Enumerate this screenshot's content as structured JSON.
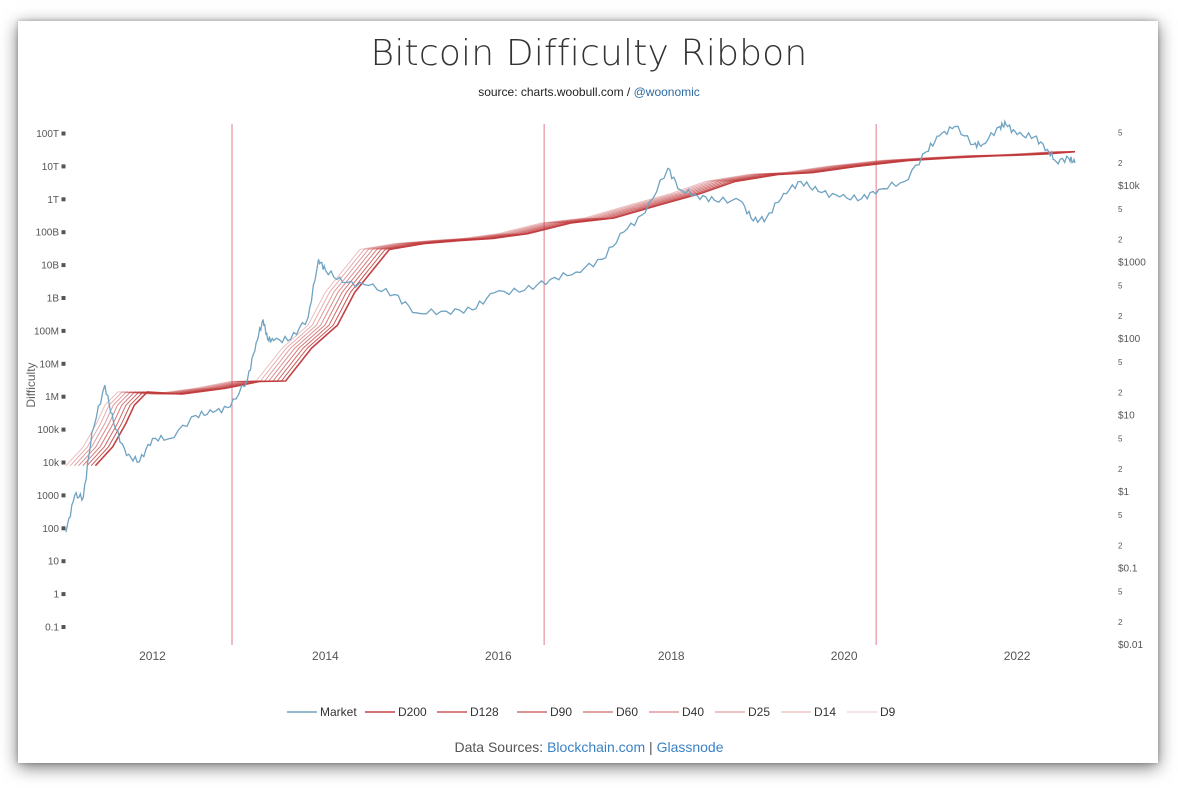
{
  "header": {
    "title": "Bitcoin Difficulty Ribbon",
    "source_prefix": "source: charts.woobull.com / ",
    "source_handle": "@woonomic"
  },
  "footer": {
    "prefix": "Data Sources: ",
    "source1": "Blockchain.com",
    "separator": " | ",
    "source2": "Glassnode"
  },
  "colors": {
    "market": "#6fa3c2",
    "ribbon": "#c0393b",
    "vline": "#e27b8a",
    "axis_text": "#555555"
  },
  "chart_data": {
    "type": "line",
    "title": "Bitcoin Difficulty Ribbon",
    "ylabel": "Difficulty",
    "y_scale": "log",
    "xlim": [
      2011.0,
      2022.67
    ],
    "x_ticks": [
      "2012",
      "2014",
      "2016",
      "2018",
      "2020",
      "2022"
    ],
    "y_left_ticks": [
      "100T",
      "10T",
      "1T",
      "100B",
      "10B",
      "1B",
      "100M",
      "10M",
      "1M",
      "100k",
      "10k",
      "1000",
      "100",
      "10",
      "1",
      "0.1"
    ],
    "y_left_values": [
      100000000000000.0,
      10000000000000.0,
      1000000000000.0,
      100000000000.0,
      10000000000.0,
      1000000000.0,
      100000000.0,
      10000000.0,
      1000000.0,
      100000.0,
      10000.0,
      1000.0,
      100.0,
      10,
      1,
      0.1
    ],
    "y_right_ticks": [
      "5",
      "2",
      "$10k",
      "5",
      "2",
      "$1000",
      "5",
      "2",
      "$100",
      "5",
      "2",
      "$10",
      "5",
      "2",
      "$1",
      "5",
      "2",
      "$0.1",
      "5",
      "2",
      "$0.01"
    ],
    "y_right_values": [
      50000,
      20000,
      10000,
      5000,
      2000,
      1000,
      500,
      200,
      100,
      50,
      20,
      10,
      5,
      2,
      1,
      0.5,
      0.2,
      0.1,
      0.05,
      0.02,
      0.01
    ],
    "vertical_lines": [
      2012.92,
      2016.53,
      2020.37
    ],
    "legend": [
      "Market",
      "D200",
      "D128",
      "D90",
      "D60",
      "D40",
      "D25",
      "D14",
      "D9"
    ],
    "market": {
      "name": "Market",
      "x": [
        2011.0,
        2011.1,
        2011.2,
        2011.3,
        2011.45,
        2011.55,
        2011.7,
        2011.85,
        2012.0,
        2012.2,
        2012.5,
        2012.7,
        2012.9,
        2013.1,
        2013.2,
        2013.28,
        2013.33,
        2013.4,
        2013.6,
        2013.8,
        2013.92,
        2014.0,
        2014.2,
        2014.5,
        2014.8,
        2015.05,
        2015.4,
        2015.7,
        2015.95,
        2016.3,
        2016.6,
        2016.9,
        2017.2,
        2017.45,
        2017.7,
        2017.96,
        2018.1,
        2018.3,
        2018.5,
        2018.8,
        2018.95,
        2019.1,
        2019.3,
        2019.5,
        2019.7,
        2019.95,
        2020.2,
        2020.4,
        2020.7,
        2020.95,
        2021.1,
        2021.28,
        2021.5,
        2021.6,
        2021.8,
        2021.87,
        2022.0,
        2022.2,
        2022.35,
        2022.45,
        2022.6,
        2022.67
      ],
      "y": [
        0.3,
        0.9,
        0.85,
        6,
        25,
        8,
        3,
        2.5,
        5,
        5,
        10,
        11,
        13,
        30,
        90,
        180,
        100,
        95,
        100,
        190,
        1100,
        800,
        550,
        500,
        380,
        220,
        230,
        240,
        400,
        430,
        600,
        750,
        1100,
        2500,
        4500,
        17000,
        9000,
        7500,
        6500,
        6400,
        3500,
        3800,
        8000,
        11500,
        8500,
        7200,
        6800,
        9000,
        11500,
        28000,
        45000,
        60000,
        35000,
        35000,
        60000,
        64000,
        47000,
        44000,
        30000,
        21000,
        23000,
        20000
      ]
    },
    "ribbon": {
      "series_names": [
        "D200",
        "D128",
        "D90",
        "D60",
        "D40",
        "D25",
        "D14",
        "D9"
      ],
      "x": [
        2011.0,
        2011.2,
        2011.35,
        2011.45,
        2011.6,
        2012.0,
        2012.5,
        2012.9,
        2013.2,
        2013.5,
        2013.8,
        2014.0,
        2014.4,
        2014.8,
        2015.2,
        2015.6,
        2016.0,
        2016.5,
        2017.0,
        2017.5,
        2018.0,
        2018.4,
        2018.9,
        2019.3,
        2019.8,
        2020.4,
        2020.9,
        2021.4,
        2021.7,
        2022.0,
        2022.4,
        2022.67
      ],
      "y": [
        8000,
        30000,
        150000,
        550000,
        1400000,
        1200000,
        1800000,
        2900000,
        3000000,
        30000000,
        150000000,
        1500000000,
        30000000000,
        45000000000,
        55000000000,
        65000000000,
        90000000000,
        190000000000,
        270000000000,
        650000000000,
        1500000000000,
        3500000000000,
        5700000000000,
        6500000000000,
        10000000000000,
        15000000000000,
        18000000000000,
        21000000000000,
        22000000000000,
        24000000000000,
        28000000000000,
        28000000000000
      ]
    }
  }
}
